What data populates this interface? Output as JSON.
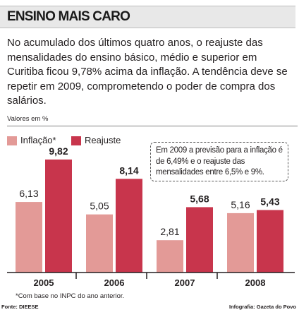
{
  "title": "ENSINO MAIS CARO",
  "intro": "No acumulado dos últimos quatro anos, o reajuste das mensalidades do ensino básico, médio e superior em Curitiba ficou 9,78% acima da inflação. A tendência deve se repetir em 2009, comprometendo o poder de compra dos salários.",
  "note": "Em 2009 a previsão para a inflação é de 6,49% e o reajuste das mensalidades entre 6,5% e 9%.",
  "footnote": "*Com base no INPC do ano anterior.",
  "source": "Fonte: DIEESE",
  "credit": "Infografia: Gazeta do Povo",
  "chart_data": {
    "type": "bar",
    "units_label": "Valores em %",
    "categories": [
      "2005",
      "2006",
      "2007",
      "2008"
    ],
    "series": [
      {
        "name": "Inflação*",
        "color": "#e39a97",
        "values": [
          6.13,
          5.05,
          2.81,
          5.16
        ],
        "labels": [
          "6,13",
          "5,05",
          "2,81",
          "5,16"
        ]
      },
      {
        "name": "Reajuste",
        "color": "#c8354c",
        "values": [
          9.82,
          8.14,
          5.68,
          5.43
        ],
        "labels": [
          "9,82",
          "8,14",
          "5,68",
          "5,43"
        ]
      }
    ],
    "ylim": [
      0,
      10
    ],
    "legend_position": "top-left",
    "grid": false
  }
}
